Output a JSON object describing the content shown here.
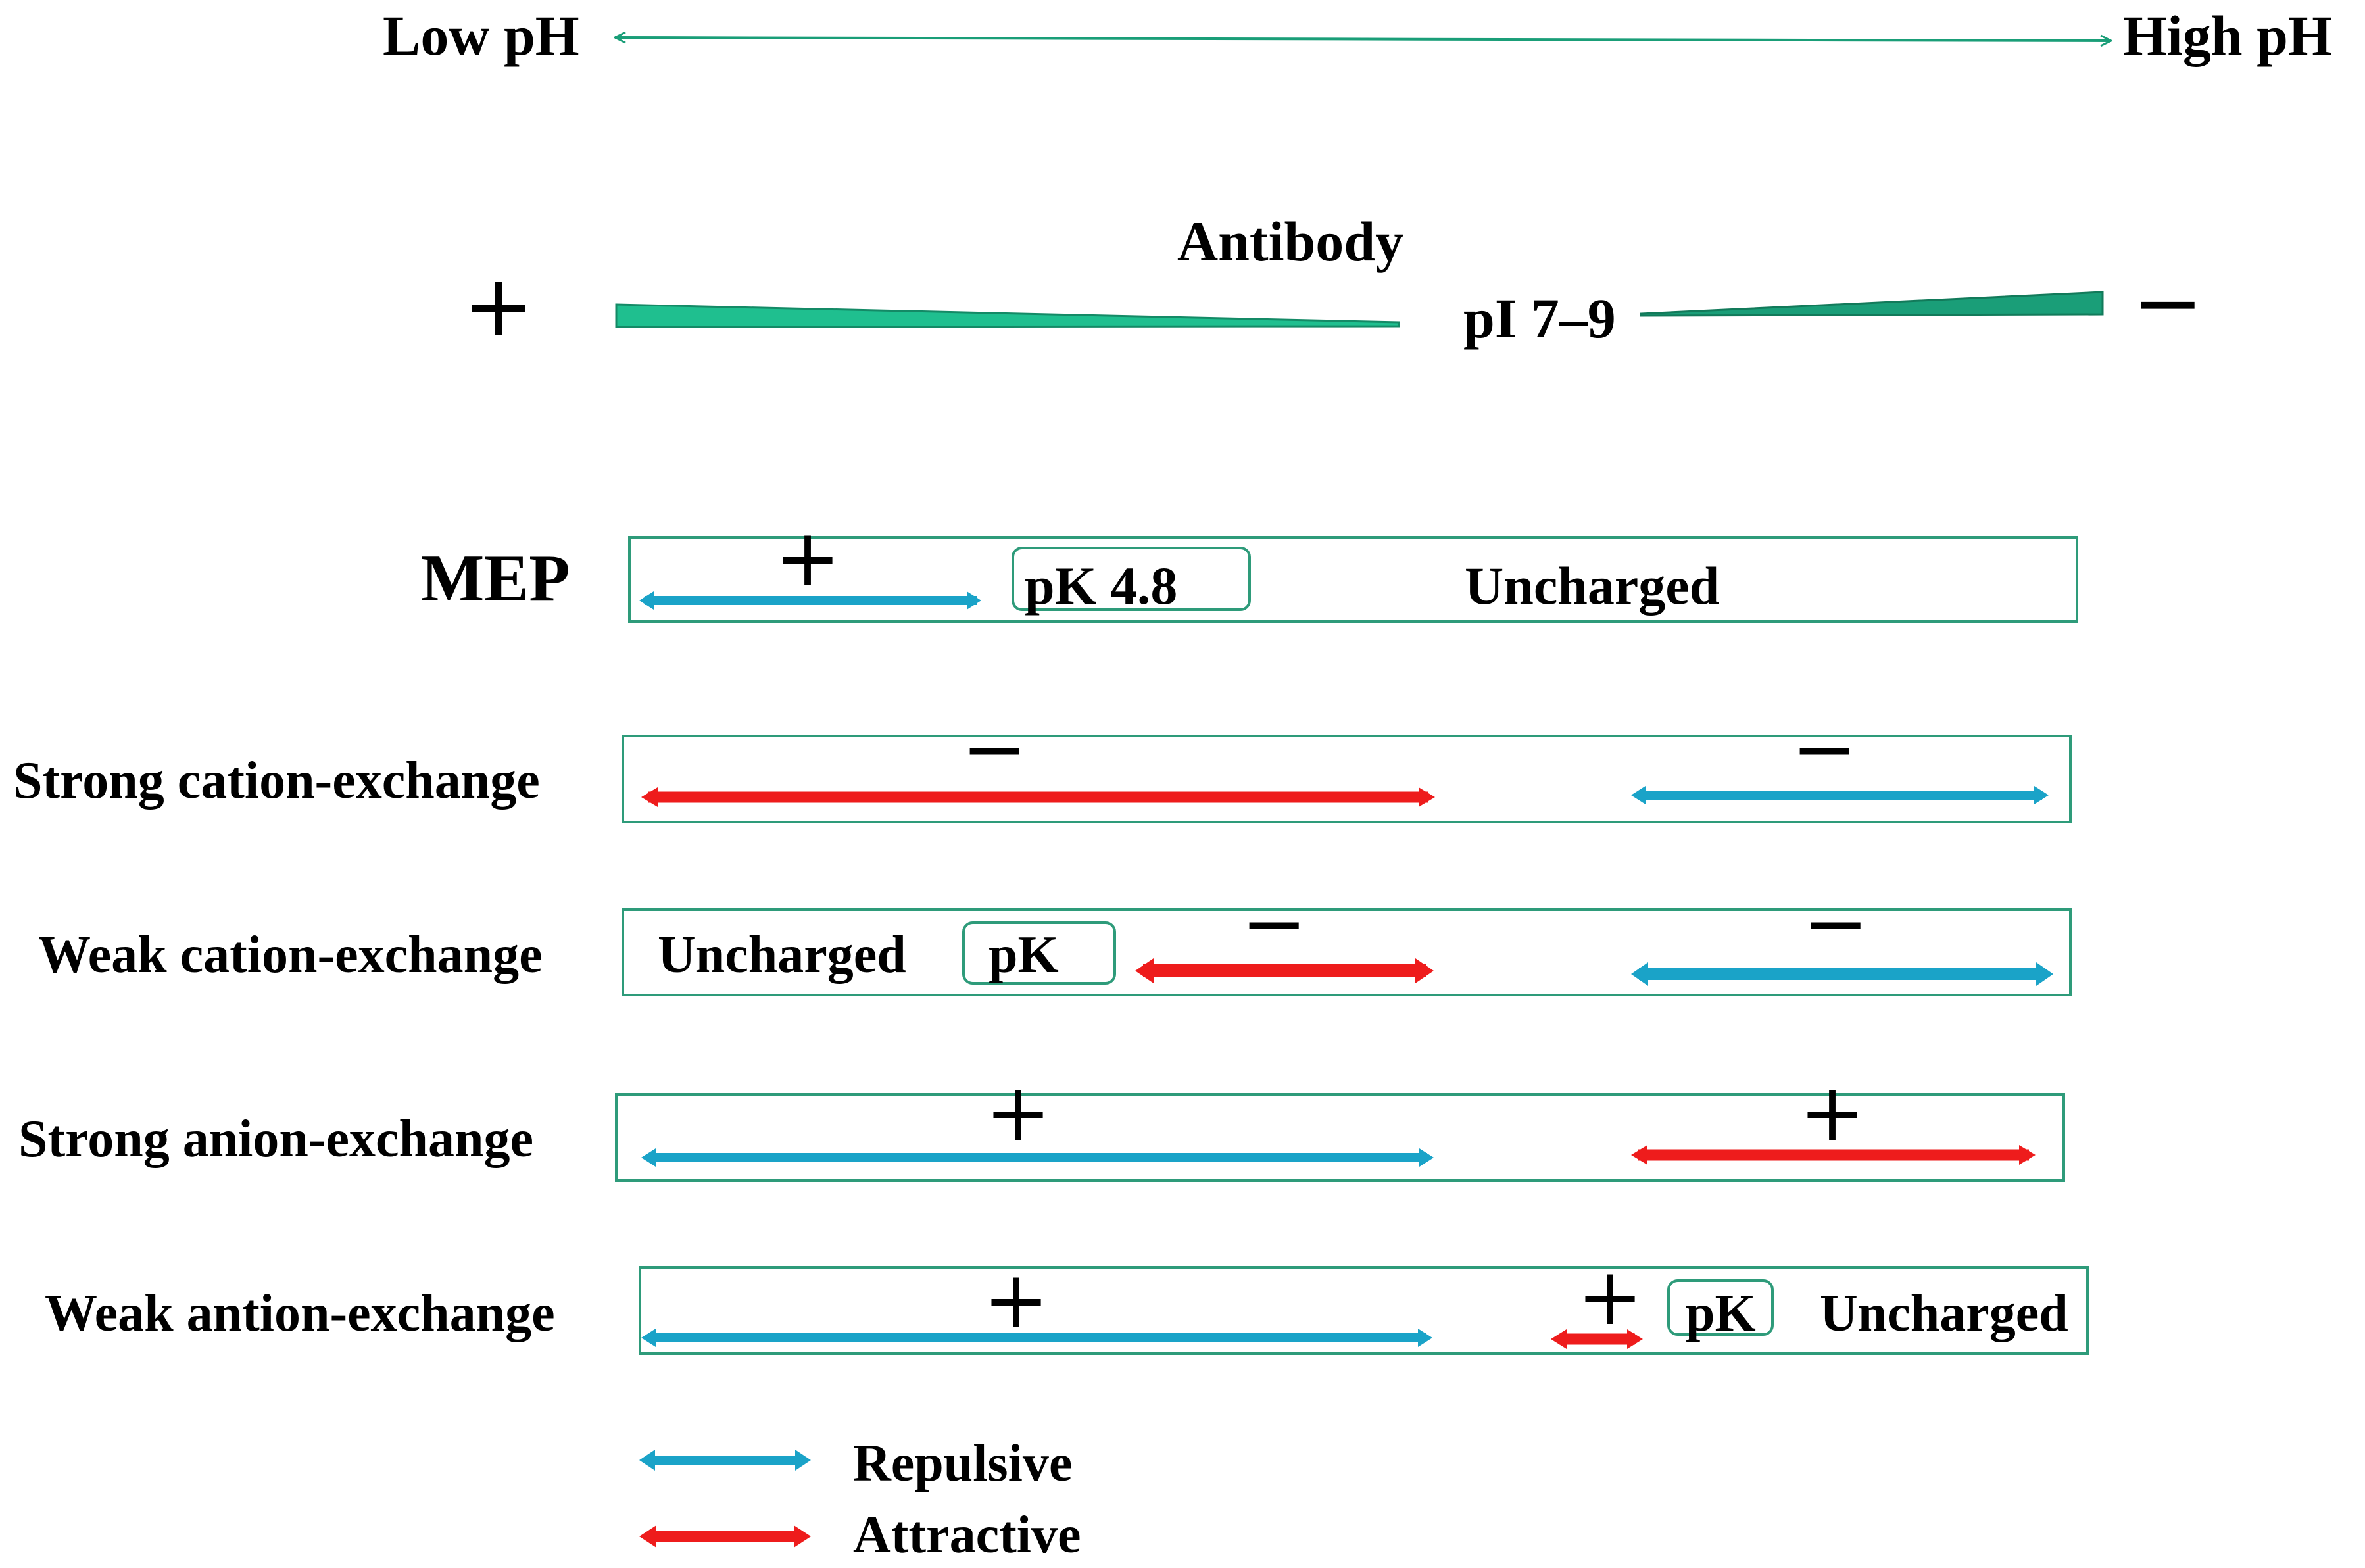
{
  "colors": {
    "teal": "#1a9e78",
    "teal_fill": "#1fbf8f",
    "teal_dark": "#148a66",
    "repulsive": "#1aa3c8",
    "attractive": "#ee1c1c",
    "box": "#2e9b7a"
  },
  "header": {
    "low_ph": "Low pH",
    "high_ph": "High pH"
  },
  "antibody": {
    "title": "Antibody",
    "pi": "pI 7–9",
    "plus": "+",
    "minus": "−"
  },
  "rows": {
    "mep": {
      "label": "MEP",
      "sign": "+",
      "pk": "pK 4.8",
      "uncharged": "Uncharged"
    },
    "strong_cation": {
      "label": "Strong cation-exchange",
      "sign_left": "−",
      "sign_right": "−"
    },
    "weak_cation": {
      "label": "Weak cation-exchange",
      "uncharged": "Uncharged",
      "pk": "pK",
      "sign_left": "−",
      "sign_right": "−"
    },
    "strong_anion": {
      "label": "Strong anion-exchange",
      "sign_left": "+",
      "sign_right": "+"
    },
    "weak_anion": {
      "label": "Weak antion-exchange",
      "sign_left": "+",
      "sign_right": "+",
      "pk": "pK",
      "uncharged": "Uncharged"
    }
  },
  "legend": {
    "repulsive": "Repulsive",
    "attractive": "Attractive"
  }
}
